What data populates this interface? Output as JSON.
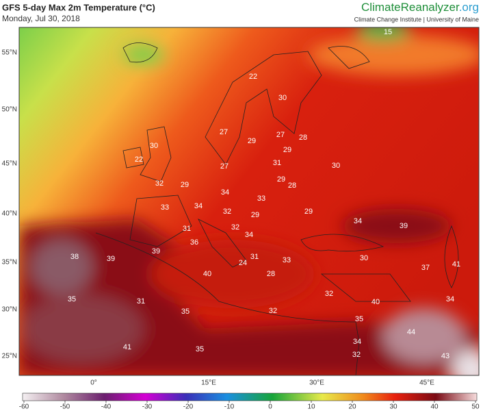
{
  "header": {
    "title": "GFS 5-day Max 2m Temperature (°C)",
    "subtitle": "Monday, Jul 30, 2018",
    "brand_climate": "Climate",
    "brand_reanalyzer": "Reanalyzer",
    "brand_org": ".org",
    "institute": "Climate Change Institute | University of Maine"
  },
  "latitude_labels": [
    "55°N",
    "50°N",
    "45°N",
    "40°N",
    "35°N",
    "30°N",
    "25°N"
  ],
  "longitude_labels": [
    "0°",
    "15°E",
    "30°E",
    "45°E"
  ],
  "temperature_labels": [
    15,
    22,
    30,
    27,
    27,
    28,
    29,
    29,
    30,
    22,
    27,
    31,
    30,
    32,
    29,
    29,
    28,
    34,
    33,
    34,
    33,
    32,
    29,
    29,
    34,
    39,
    31,
    32,
    34,
    36,
    38,
    39,
    39,
    31,
    24,
    33,
    30,
    37,
    41,
    40,
    28,
    32,
    34,
    35,
    31,
    40,
    35,
    32,
    35,
    44,
    34,
    41,
    35,
    32,
    43
  ],
  "colorbar": {
    "ticks": [
      -60,
      -50,
      -40,
      -30,
      -20,
      -10,
      0,
      10,
      20,
      30,
      40,
      50
    ]
  }
}
